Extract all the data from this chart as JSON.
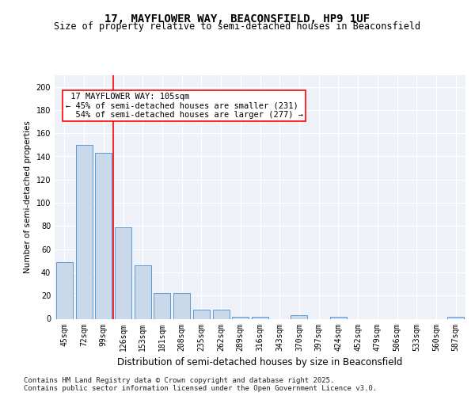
{
  "title": "17, MAYFLOWER WAY, BEACONSFIELD, HP9 1UF",
  "subtitle": "Size of property relative to semi-detached houses in Beaconsfield",
  "xlabel": "Distribution of semi-detached houses by size in Beaconsfield",
  "ylabel": "Number of semi-detached properties",
  "categories": [
    "45sqm",
    "72sqm",
    "99sqm",
    "126sqm",
    "153sqm",
    "181sqm",
    "208sqm",
    "235sqm",
    "262sqm",
    "289sqm",
    "316sqm",
    "343sqm",
    "370sqm",
    "397sqm",
    "424sqm",
    "452sqm",
    "479sqm",
    "506sqm",
    "533sqm",
    "560sqm",
    "587sqm"
  ],
  "values": [
    49,
    150,
    143,
    79,
    46,
    22,
    22,
    8,
    8,
    2,
    2,
    0,
    3,
    0,
    2,
    0,
    0,
    0,
    0,
    0,
    2
  ],
  "bar_color": "#c9d9ea",
  "bar_edge_color": "#5b9bd5",
  "red_line_x": 2.5,
  "pct_smaller": 45,
  "n_smaller": 231,
  "pct_larger": 54,
  "n_larger": 277,
  "ylim": [
    0,
    210
  ],
  "yticks": [
    0,
    20,
    40,
    60,
    80,
    100,
    120,
    140,
    160,
    180,
    200
  ],
  "background_color": "#eef2f8",
  "footer": "Contains HM Land Registry data © Crown copyright and database right 2025.\nContains public sector information licensed under the Open Government Licence v3.0.",
  "title_fontsize": 10,
  "subtitle_fontsize": 8.5,
  "xlabel_fontsize": 8.5,
  "ylabel_fontsize": 7.5,
  "tick_fontsize": 7,
  "annotation_fontsize": 7.5,
  "footer_fontsize": 6.5
}
